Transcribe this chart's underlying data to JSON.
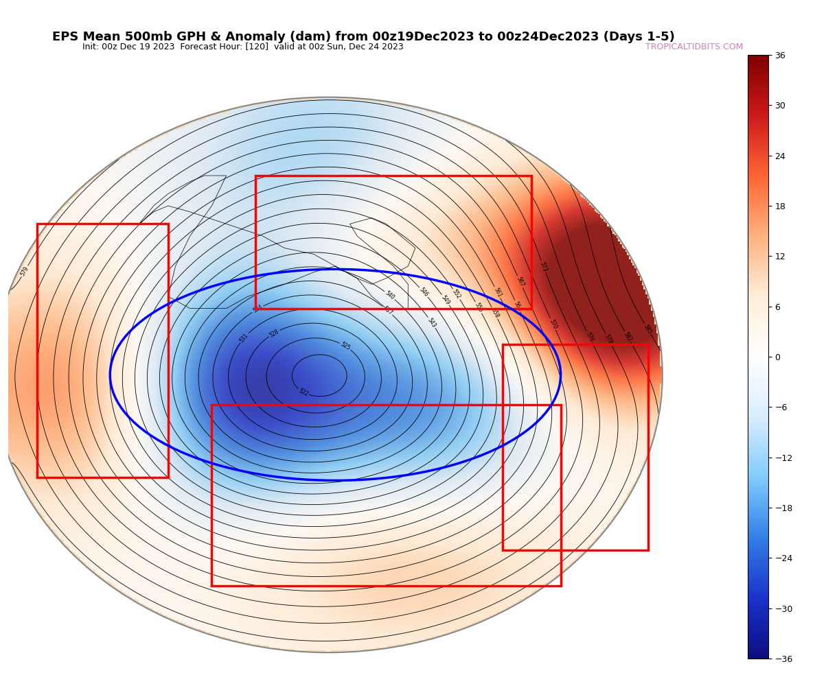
{
  "title": "EPS Mean 500mb GPH & Anomaly (dam) from 00z19Dec2023 to 00z24Dec2023 (Days 1-5)",
  "subtitle": "Init: 00z Dec 19 2023  Forecast Hour: [120]  valid at 00z Sun, Dec 24 2023",
  "watermark": "TROPICALTIDBITS.COM",
  "colorbar_ticks": [
    36,
    30,
    24,
    18,
    12,
    6,
    0,
    -6,
    -12,
    -18,
    -24,
    -30,
    -36
  ],
  "fig_width": 12.03,
  "fig_height": 10.0,
  "title_fontsize": 13,
  "subtitle_fontsize": 9,
  "background_color": "#ffffff",
  "map_bg": "#f5d9b5"
}
